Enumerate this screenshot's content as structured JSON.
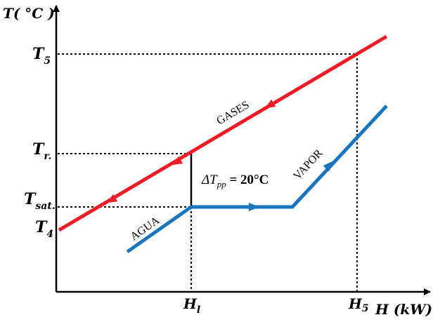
{
  "axes": {
    "y_title": "T( °C )",
    "x_title": "H (kW)"
  },
  "y_ticks": {
    "t5": {
      "main": "T",
      "sub": "5"
    },
    "tr": {
      "main": "T",
      "sub": "r."
    },
    "tsat": {
      "main": "T",
      "sub": "sat."
    },
    "t4": {
      "main": "T",
      "sub": "4"
    }
  },
  "x_ticks": {
    "hl": {
      "main": "H",
      "sub": "l"
    },
    "h5": {
      "main": "H",
      "sub": "5"
    }
  },
  "curves": {
    "gases_label": "GASES",
    "agua_label": "AGUA",
    "vapor_label": "VAPOR"
  },
  "pinch": {
    "delta": "ΔT",
    "sub": "pp",
    "value": " = 20°C"
  },
  "colors": {
    "gases": "#ee1c24",
    "water_steam": "#1a75bc",
    "axis": "#000000"
  }
}
